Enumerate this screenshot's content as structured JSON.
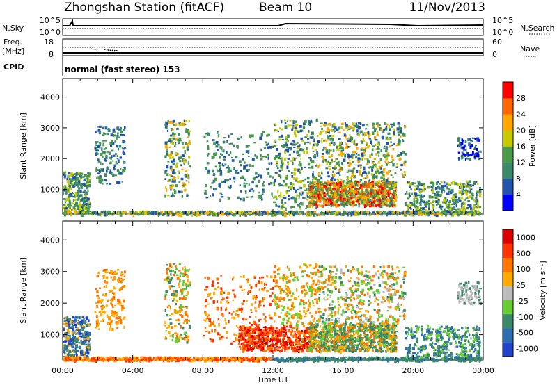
{
  "header": {
    "station": "Zhongshan Station (fitACF)",
    "beam": "Beam 10",
    "date": "11/Nov/2013"
  },
  "strip": {
    "nsky_label": "N.Sky",
    "nsky_ticks": [
      "10^5",
      "10^0"
    ],
    "nsearch_label": "N.Search",
    "nsearch_ticks": [
      "10^5",
      "10^0"
    ],
    "freq_label": "Freq.",
    "freq_unit": "[MHz]",
    "freq_ticks": [
      "18",
      "8"
    ],
    "nave_label": "Nave",
    "nave_ticks": [
      "60",
      "0"
    ],
    "cpid_label": "CPID",
    "cpid_text": "normal (fast stereo) 153"
  },
  "colors": {
    "power": [
      "#0000ff",
      "#2255aa",
      "#3a8a6a",
      "#4a9a4a",
      "#c8c800",
      "#ffa500",
      "#ff6600",
      "#ff0000"
    ],
    "velocity": [
      "#2244cc",
      "#2e6eb0",
      "#3a8a6a",
      "#66cc33",
      "#bbbbbb",
      "#ffaa00",
      "#ff7700",
      "#ff3300",
      "#dd0000"
    ]
  },
  "chart_data": [
    {
      "type": "heatmap",
      "title": "",
      "ylabel": "Slant Range [km]",
      "xlabel": "Time UT",
      "x_ticks": [
        "00:00",
        "04:00",
        "08:00",
        "12:00",
        "16:00",
        "20:00",
        "00:00"
      ],
      "y_ticks": [
        "1000",
        "2000",
        "3000",
        "4000"
      ],
      "ylim": [
        200,
        4600
      ],
      "xlim_hours": [
        0,
        24
      ],
      "colorbar": {
        "label": "Power [dB]",
        "ticks": [
          "4",
          "8",
          "12",
          "16",
          "20",
          "24",
          "28"
        ]
      }
    },
    {
      "type": "heatmap",
      "title": "",
      "ylabel": "Slant Range [km]",
      "xlabel": "Time UT",
      "x_ticks": [
        "00:00",
        "04:00",
        "08:00",
        "12:00",
        "16:00",
        "20:00",
        "00:00"
      ],
      "y_ticks": [
        "1000",
        "2000",
        "3000",
        "4000"
      ],
      "ylim": [
        200,
        4600
      ],
      "xlim_hours": [
        0,
        24
      ],
      "colorbar": {
        "label": "Velocity [m s⁻¹]",
        "ticks": [
          "1000",
          "500",
          "100",
          "25",
          "-25",
          "-100",
          "-500",
          "-1000"
        ]
      }
    }
  ]
}
